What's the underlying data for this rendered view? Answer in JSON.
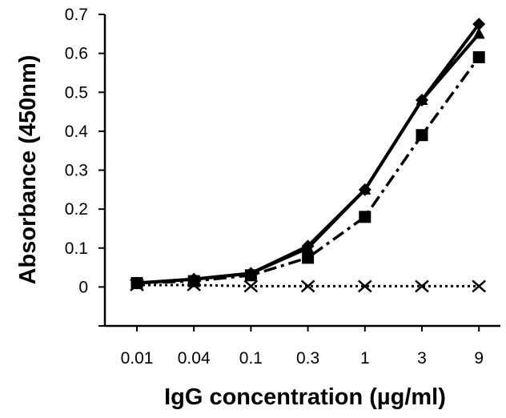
{
  "chart_data": {
    "type": "line",
    "xlabel": "IgG concentration (µg/ml)",
    "ylabel": "Absorbance (450nm)",
    "x_scale": "log",
    "categories": [
      "0.01",
      "0.04",
      "0.1",
      "0.3",
      "1",
      "3",
      "9"
    ],
    "ylim": [
      -0.1,
      0.7
    ],
    "yticks": [
      "0",
      "0.1",
      "0.2",
      "0.3",
      "0.4",
      "0.5",
      "0.6",
      "0.7"
    ],
    "grid": false,
    "legend": "none",
    "series": [
      {
        "marker": "diamond",
        "line_style": "solid",
        "color": "#000000",
        "values": [
          0.01,
          0.02,
          0.035,
          0.105,
          0.25,
          0.48,
          0.675
        ]
      },
      {
        "marker": "triangle",
        "line_style": "solid",
        "color": "#000000",
        "values": [
          0.01,
          0.02,
          0.035,
          0.1,
          0.25,
          0.48,
          0.65
        ]
      },
      {
        "marker": "square",
        "line_style": "dash-dot",
        "color": "#000000",
        "values": [
          0.01,
          0.015,
          0.03,
          0.075,
          0.18,
          0.39,
          0.59
        ]
      },
      {
        "marker": "x",
        "line_style": "dotted",
        "color": "#000000",
        "values": [
          0.005,
          0.005,
          0.002,
          0.002,
          0.002,
          0.002,
          0.002
        ]
      }
    ]
  }
}
